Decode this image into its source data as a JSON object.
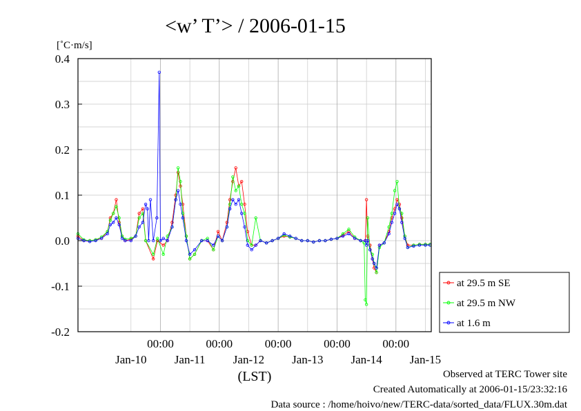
{
  "chart_data": {
    "type": "line",
    "title": "<w’ T’> / 2006-01-15",
    "ylabel": "[˚C·m/s]",
    "xlabel": "(LST)",
    "ylim": [
      -0.2,
      0.4
    ],
    "yticks": [
      "0.4",
      "0.3",
      "0.2",
      "0.1",
      "0.0",
      "-0.1",
      "-0.2"
    ],
    "xlim": [
      -1.4,
      4.6
    ],
    "midnight_label": "00:00",
    "midnights": [
      0,
      1,
      2,
      3,
      4
    ],
    "date_labels": [
      {
        "x": -0.5,
        "label": "Jan-10"
      },
      {
        "x": 0.5,
        "label": "Jan-11"
      },
      {
        "x": 1.5,
        "label": "Jan-12"
      },
      {
        "x": 2.5,
        "label": "Jan-13"
      },
      {
        "x": 3.5,
        "label": "Jan-14"
      },
      {
        "x": 4.5,
        "label": "Jan-15"
      }
    ],
    "grid": true,
    "legend_position": "right",
    "series": [
      {
        "name": "at 29.5 m SE",
        "color": "#ff0000",
        "points": [
          [
            -1.4,
            0.01
          ],
          [
            -1.3,
            0.0
          ],
          [
            -1.2,
            0.0
          ],
          [
            -1.1,
            0.002
          ],
          [
            -1.0,
            0.005
          ],
          [
            -0.9,
            0.02
          ],
          [
            -0.85,
            0.05
          ],
          [
            -0.8,
            0.06
          ],
          [
            -0.75,
            0.09
          ],
          [
            -0.7,
            0.04
          ],
          [
            -0.65,
            0.01
          ],
          [
            -0.6,
            0.0
          ],
          [
            -0.5,
            0.003
          ],
          [
            -0.42,
            0.01
          ],
          [
            -0.36,
            0.06
          ],
          [
            -0.3,
            0.07
          ],
          [
            -0.25,
            0.0
          ],
          [
            -0.12,
            -0.04
          ],
          [
            -0.05,
            0.0
          ],
          [
            0.05,
            -0.01
          ],
          [
            0.12,
            0.0
          ],
          [
            0.2,
            0.04
          ],
          [
            0.26,
            0.1
          ],
          [
            0.3,
            0.15
          ],
          [
            0.34,
            0.12
          ],
          [
            0.38,
            0.08
          ],
          [
            0.44,
            0.01
          ],
          [
            0.5,
            -0.04
          ],
          [
            0.58,
            -0.03
          ],
          [
            0.7,
            0.0
          ],
          [
            0.8,
            0.0
          ],
          [
            0.9,
            -0.02
          ],
          [
            0.98,
            0.02
          ],
          [
            1.05,
            0.0
          ],
          [
            1.13,
            0.04
          ],
          [
            1.18,
            0.09
          ],
          [
            1.23,
            0.13
          ],
          [
            1.28,
            0.16
          ],
          [
            1.33,
            0.12
          ],
          [
            1.38,
            0.13
          ],
          [
            1.43,
            0.08
          ],
          [
            1.48,
            0.02
          ],
          [
            1.55,
            -0.01
          ],
          [
            1.62,
            -0.01
          ],
          [
            1.7,
            0.0
          ],
          [
            1.8,
            -0.005
          ],
          [
            1.9,
            0.0
          ],
          [
            2.0,
            0.005
          ],
          [
            2.1,
            0.01
          ],
          [
            2.2,
            0.008
          ],
          [
            2.3,
            0.005
          ],
          [
            2.4,
            0.0
          ],
          [
            2.5,
            0.0
          ],
          [
            2.6,
            -0.003
          ],
          [
            2.7,
            0.0
          ],
          [
            2.8,
            0.0
          ],
          [
            2.9,
            0.003
          ],
          [
            3.0,
            0.005
          ],
          [
            3.1,
            0.012
          ],
          [
            3.2,
            0.02
          ],
          [
            3.3,
            0.005
          ],
          [
            3.4,
            0.0
          ],
          [
            3.48,
            0.0
          ],
          [
            3.5,
            0.09
          ],
          [
            3.52,
            0.01
          ],
          [
            3.56,
            -0.01
          ],
          [
            3.6,
            -0.04
          ],
          [
            3.63,
            -0.06
          ],
          [
            3.67,
            -0.07
          ],
          [
            3.72,
            -0.01
          ],
          [
            3.8,
            -0.005
          ],
          [
            3.88,
            0.02
          ],
          [
            3.93,
            0.05
          ],
          [
            3.98,
            0.07
          ],
          [
            4.02,
            0.09
          ],
          [
            4.06,
            0.08
          ],
          [
            4.1,
            0.05
          ],
          [
            4.15,
            0.01
          ],
          [
            4.2,
            -0.01
          ],
          [
            4.3,
            -0.01
          ],
          [
            4.4,
            -0.008
          ],
          [
            4.5,
            -0.008
          ],
          [
            4.58,
            -0.008
          ]
        ]
      },
      {
        "name": "at 29.5 m NW",
        "color": "#00ff00",
        "points": [
          [
            -1.4,
            0.015
          ],
          [
            -1.3,
            0.002
          ],
          [
            -1.2,
            0.0
          ],
          [
            -1.1,
            0.002
          ],
          [
            -1.0,
            0.008
          ],
          [
            -0.9,
            0.02
          ],
          [
            -0.85,
            0.045
          ],
          [
            -0.8,
            0.06
          ],
          [
            -0.75,
            0.075
          ],
          [
            -0.7,
            0.05
          ],
          [
            -0.65,
            0.01
          ],
          [
            -0.6,
            0.003
          ],
          [
            -0.5,
            0.005
          ],
          [
            -0.42,
            0.01
          ],
          [
            -0.36,
            0.05
          ],
          [
            -0.3,
            0.06
          ],
          [
            -0.25,
            0.0
          ],
          [
            -0.12,
            -0.03
          ],
          [
            -0.05,
            0.005
          ],
          [
            0.05,
            -0.03
          ],
          [
            0.12,
            0.01
          ],
          [
            0.2,
            0.03
          ],
          [
            0.26,
            0.09
          ],
          [
            0.3,
            0.16
          ],
          [
            0.34,
            0.13
          ],
          [
            0.38,
            0.06
          ],
          [
            0.44,
            0.01
          ],
          [
            0.5,
            -0.04
          ],
          [
            0.58,
            -0.03
          ],
          [
            0.7,
            0.0
          ],
          [
            0.8,
            0.005
          ],
          [
            0.9,
            -0.02
          ],
          [
            0.98,
            0.01
          ],
          [
            1.05,
            0.0
          ],
          [
            1.13,
            0.03
          ],
          [
            1.18,
            0.08
          ],
          [
            1.23,
            0.14
          ],
          [
            1.28,
            0.11
          ],
          [
            1.33,
            0.12
          ],
          [
            1.38,
            0.08
          ],
          [
            1.43,
            0.06
          ],
          [
            1.48,
            0.0
          ],
          [
            1.55,
            -0.01
          ],
          [
            1.62,
            0.05
          ],
          [
            1.7,
            0.0
          ],
          [
            1.8,
            -0.005
          ],
          [
            1.9,
            0.0
          ],
          [
            2.0,
            0.005
          ],
          [
            2.1,
            0.012
          ],
          [
            2.2,
            0.008
          ],
          [
            2.3,
            0.005
          ],
          [
            2.4,
            0.0
          ],
          [
            2.5,
            0.0
          ],
          [
            2.6,
            -0.003
          ],
          [
            2.7,
            0.0
          ],
          [
            2.8,
            0.0
          ],
          [
            2.9,
            0.003
          ],
          [
            3.0,
            0.005
          ],
          [
            3.1,
            0.015
          ],
          [
            3.2,
            0.025
          ],
          [
            3.3,
            0.008
          ],
          [
            3.4,
            0.0
          ],
          [
            3.46,
            -0.005
          ],
          [
            3.48,
            -0.13
          ],
          [
            3.5,
            -0.14
          ],
          [
            3.52,
            0.05
          ],
          [
            3.56,
            -0.02
          ],
          [
            3.6,
            -0.03
          ],
          [
            3.63,
            -0.05
          ],
          [
            3.67,
            -0.07
          ],
          [
            3.72,
            -0.015
          ],
          [
            3.8,
            -0.005
          ],
          [
            3.88,
            0.03
          ],
          [
            3.93,
            0.06
          ],
          [
            3.98,
            0.11
          ],
          [
            4.02,
            0.13
          ],
          [
            4.06,
            0.07
          ],
          [
            4.1,
            0.06
          ],
          [
            4.15,
            0.01
          ],
          [
            4.2,
            -0.015
          ],
          [
            4.3,
            -0.01
          ],
          [
            4.4,
            -0.008
          ],
          [
            4.5,
            -0.008
          ],
          [
            4.58,
            -0.008
          ]
        ]
      },
      {
        "name": "at 1.6 m",
        "color": "#0000ff",
        "points": [
          [
            -1.4,
            0.005
          ],
          [
            -1.3,
            0.0
          ],
          [
            -1.2,
            -0.002
          ],
          [
            -1.1,
            0.0
          ],
          [
            -1.0,
            0.005
          ],
          [
            -0.9,
            0.015
          ],
          [
            -0.85,
            0.035
          ],
          [
            -0.8,
            0.04
          ],
          [
            -0.75,
            0.05
          ],
          [
            -0.7,
            0.035
          ],
          [
            -0.65,
            0.005
          ],
          [
            -0.6,
            0.0
          ],
          [
            -0.5,
            0.0
          ],
          [
            -0.42,
            0.01
          ],
          [
            -0.36,
            0.03
          ],
          [
            -0.3,
            0.04
          ],
          [
            -0.25,
            0.08
          ],
          [
            -0.22,
            0.07
          ],
          [
            -0.2,
            0.0
          ],
          [
            -0.17,
            0.09
          ],
          [
            -0.12,
            0.0
          ],
          [
            -0.06,
            0.05
          ],
          [
            -0.02,
            0.37
          ],
          [
            0.0,
            0.0
          ],
          [
            0.05,
            0.005
          ],
          [
            0.12,
            0.0
          ],
          [
            0.2,
            0.03
          ],
          [
            0.26,
            0.09
          ],
          [
            0.3,
            0.11
          ],
          [
            0.34,
            0.08
          ],
          [
            0.38,
            0.05
          ],
          [
            0.44,
            0.0
          ],
          [
            0.5,
            -0.03
          ],
          [
            0.58,
            -0.02
          ],
          [
            0.7,
            0.0
          ],
          [
            0.8,
            0.0
          ],
          [
            0.9,
            -0.01
          ],
          [
            0.98,
            0.01
          ],
          [
            1.05,
            0.0
          ],
          [
            1.13,
            0.03
          ],
          [
            1.18,
            0.07
          ],
          [
            1.23,
            0.09
          ],
          [
            1.28,
            0.08
          ],
          [
            1.33,
            0.09
          ],
          [
            1.38,
            0.06
          ],
          [
            1.43,
            0.03
          ],
          [
            1.48,
            -0.01
          ],
          [
            1.55,
            -0.02
          ],
          [
            1.62,
            -0.01
          ],
          [
            1.7,
            0.0
          ],
          [
            1.8,
            -0.005
          ],
          [
            1.9,
            0.0
          ],
          [
            2.0,
            0.005
          ],
          [
            2.1,
            0.015
          ],
          [
            2.2,
            0.01
          ],
          [
            2.3,
            0.005
          ],
          [
            2.4,
            0.0
          ],
          [
            2.5,
            0.0
          ],
          [
            2.6,
            -0.003
          ],
          [
            2.7,
            0.0
          ],
          [
            2.8,
            0.0
          ],
          [
            2.9,
            0.003
          ],
          [
            3.0,
            0.005
          ],
          [
            3.1,
            0.01
          ],
          [
            3.2,
            0.015
          ],
          [
            3.3,
            0.005
          ],
          [
            3.4,
            0.0
          ],
          [
            3.48,
            0.0
          ],
          [
            3.5,
            -0.01
          ],
          [
            3.52,
            0.0
          ],
          [
            3.56,
            -0.02
          ],
          [
            3.6,
            -0.04
          ],
          [
            3.63,
            -0.05
          ],
          [
            3.67,
            -0.06
          ],
          [
            3.72,
            -0.01
          ],
          [
            3.8,
            -0.005
          ],
          [
            3.88,
            0.015
          ],
          [
            3.93,
            0.04
          ],
          [
            3.98,
            0.06
          ],
          [
            4.02,
            0.08
          ],
          [
            4.06,
            0.07
          ],
          [
            4.1,
            0.04
          ],
          [
            4.15,
            0.005
          ],
          [
            4.2,
            -0.015
          ],
          [
            4.3,
            -0.012
          ],
          [
            4.4,
            -0.01
          ],
          [
            4.5,
            -0.01
          ],
          [
            4.58,
            -0.01
          ]
        ]
      }
    ]
  },
  "footer": {
    "site": "Observed at TERC Tower site",
    "created": "Created Automatically at 2006-01-15/23:32:16",
    "source": "Data source : /home/hoivo/new/TERC-data/sorted_data/FLUX.30m.dat"
  }
}
